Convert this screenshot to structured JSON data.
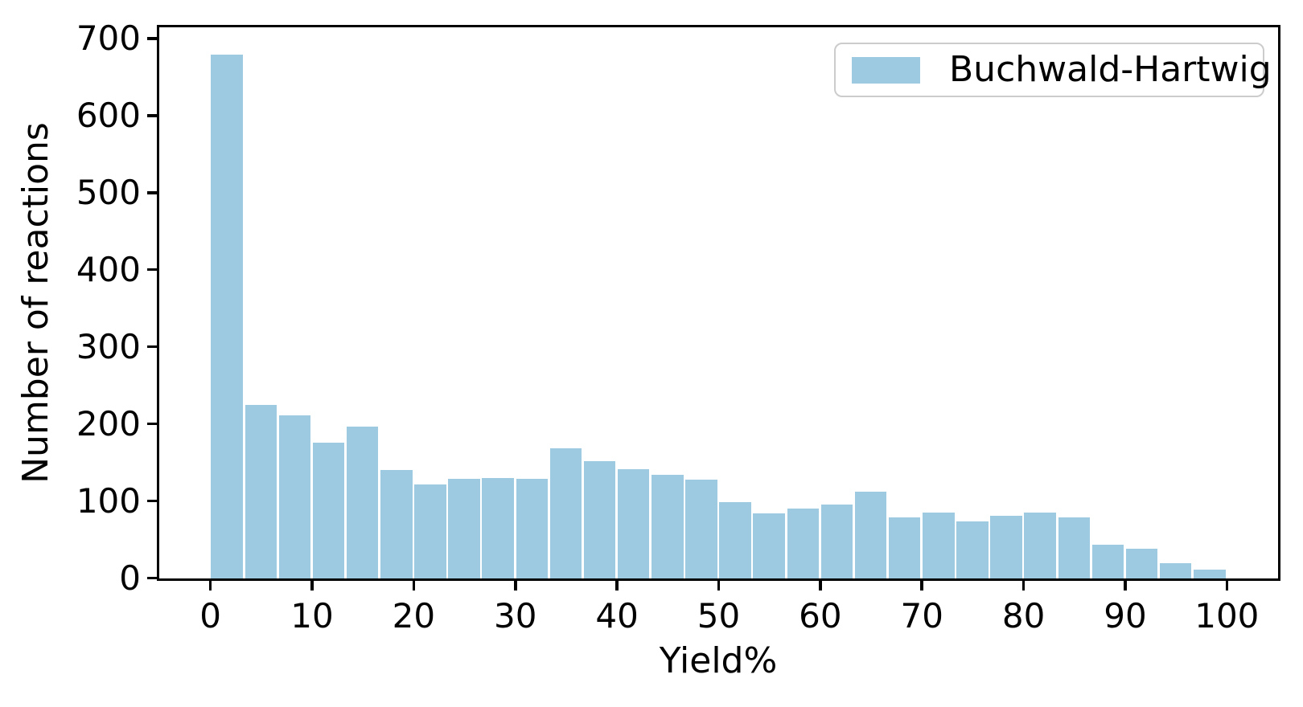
{
  "figure": {
    "background": "#ffffff"
  },
  "colors": {
    "bar": "#9ecae1",
    "axis": "#000000",
    "text": "#000000",
    "legend_border": "#cccccc"
  },
  "chart_data": {
    "type": "bar",
    "subtype": "histogram",
    "title": "",
    "xlabel": "Yield%",
    "ylabel": "Number of reactions",
    "grid": false,
    "legend_position": "upper right",
    "legend": [
      {
        "label": "Buchwald-Hartwig",
        "color": "#9ecae1"
      }
    ],
    "xlim": [
      -5,
      105
    ],
    "ylim": [
      0,
      714
    ],
    "x_ticks": [
      0,
      10,
      20,
      30,
      40,
      50,
      60,
      70,
      80,
      90,
      100
    ],
    "y_ticks": [
      0,
      100,
      200,
      300,
      400,
      500,
      600,
      700
    ],
    "bins": {
      "range_start": 0,
      "range_end": 100,
      "count": 30
    },
    "series": [
      {
        "name": "Buchwald-Hartwig",
        "values": [
          680,
          225,
          212,
          176,
          197,
          141,
          122,
          129,
          130,
          129,
          169,
          152,
          142,
          134,
          128,
          99,
          84,
          91,
          96,
          113,
          79,
          85,
          74,
          81,
          85,
          79,
          44,
          39,
          20,
          11
        ]
      }
    ]
  }
}
